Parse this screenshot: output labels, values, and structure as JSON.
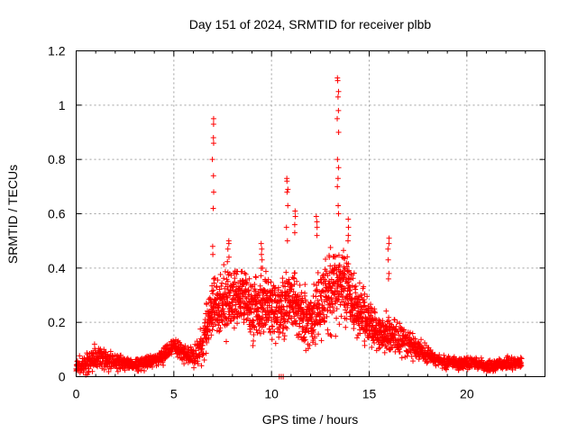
{
  "chart_data": {
    "type": "scatter",
    "title": "Day 151 of 2024, SRMTID for receiver plbb",
    "xlabel": "GPS time / hours",
    "ylabel": "SRMTID / TECUs",
    "xlim": [
      0,
      24
    ],
    "ylim": [
      0,
      1.2
    ],
    "x_ticks": [
      0,
      5,
      10,
      15,
      20
    ],
    "x_tick_labels": [
      "0",
      "5",
      "10",
      "15",
      "20"
    ],
    "y_ticks": [
      0,
      0.2,
      0.4,
      0.6,
      0.8,
      1.0,
      1.2
    ],
    "y_tick_labels": [
      "0",
      "0.2",
      "0.4",
      "0.6",
      "0.8",
      "1",
      "1.2"
    ],
    "grid": true,
    "marker": "plus",
    "marker_color": "#ff0000",
    "series": [
      {
        "name": "SRMTID",
        "envelope": {
          "description": "approximate median and spread of the point cloud",
          "x": [
            0,
            0.5,
            1,
            1.5,
            2,
            2.5,
            3,
            3.5,
            4,
            4.5,
            5,
            5.5,
            6,
            6.5,
            7,
            7.5,
            8,
            8.5,
            9,
            9.5,
            10,
            10.5,
            11,
            11.5,
            12,
            12.5,
            13,
            13.5,
            14,
            14.5,
            15,
            15.5,
            16,
            16.5,
            17,
            17.5,
            18,
            18.5,
            19,
            19.5,
            20,
            20.5,
            21,
            21.5,
            22,
            22.8
          ],
          "median": [
            0.04,
            0.05,
            0.07,
            0.07,
            0.05,
            0.05,
            0.04,
            0.05,
            0.06,
            0.08,
            0.11,
            0.09,
            0.07,
            0.12,
            0.26,
            0.27,
            0.28,
            0.3,
            0.24,
            0.28,
            0.25,
            0.22,
            0.3,
            0.24,
            0.2,
            0.26,
            0.32,
            0.35,
            0.3,
            0.24,
            0.2,
            0.16,
            0.16,
            0.14,
            0.12,
            0.1,
            0.08,
            0.06,
            0.05,
            0.05,
            0.05,
            0.05,
            0.04,
            0.04,
            0.05,
            0.05
          ],
          "spread": [
            0.02,
            0.03,
            0.04,
            0.04,
            0.03,
            0.02,
            0.02,
            0.02,
            0.02,
            0.03,
            0.03,
            0.03,
            0.04,
            0.07,
            0.1,
            0.11,
            0.1,
            0.09,
            0.1,
            0.1,
            0.09,
            0.1,
            0.1,
            0.1,
            0.09,
            0.12,
            0.13,
            0.12,
            0.1,
            0.09,
            0.07,
            0.06,
            0.06,
            0.05,
            0.05,
            0.04,
            0.03,
            0.02,
            0.02,
            0.02,
            0.02,
            0.02,
            0.02,
            0.02,
            0.02,
            0.02
          ]
        },
        "peaks": [
          {
            "x": 7.0,
            "y": [
              0.95,
              0.93,
              0.88,
              0.86,
              0.8,
              0.74,
              0.68,
              0.62,
              0.48,
              0.45
            ]
          },
          {
            "x": 7.8,
            "y": [
              0.5,
              0.49,
              0.47,
              0.44
            ]
          },
          {
            "x": 9.5,
            "y": [
              0.49,
              0.47,
              0.45,
              0.43,
              0.4
            ]
          },
          {
            "x": 10.8,
            "y": [
              0.73,
              0.72,
              0.69,
              0.68,
              0.63,
              0.55,
              0.5
            ]
          },
          {
            "x": 11.2,
            "y": [
              0.61,
              0.59,
              0.56,
              0.53
            ]
          },
          {
            "x": 12.3,
            "y": [
              0.59,
              0.57,
              0.55,
              0.52
            ]
          },
          {
            "x": 13.4,
            "y": [
              1.09,
              1.1,
              1.05,
              1.03,
              0.98,
              0.95,
              0.9,
              0.8,
              0.77,
              0.73,
              0.7,
              0.63,
              0.6
            ]
          },
          {
            "x": 13.9,
            "y": [
              0.58,
              0.55,
              0.52,
              0.5
            ]
          },
          {
            "x": 16.0,
            "y": [
              0.51,
              0.49,
              0.47,
              0.43,
              0.38,
              0.36
            ]
          }
        ],
        "floor_points": {
          "x": [
            10.4,
            10.5,
            10.6
          ],
          "y": [
            0.0,
            0.0,
            0.0
          ]
        }
      }
    ]
  }
}
